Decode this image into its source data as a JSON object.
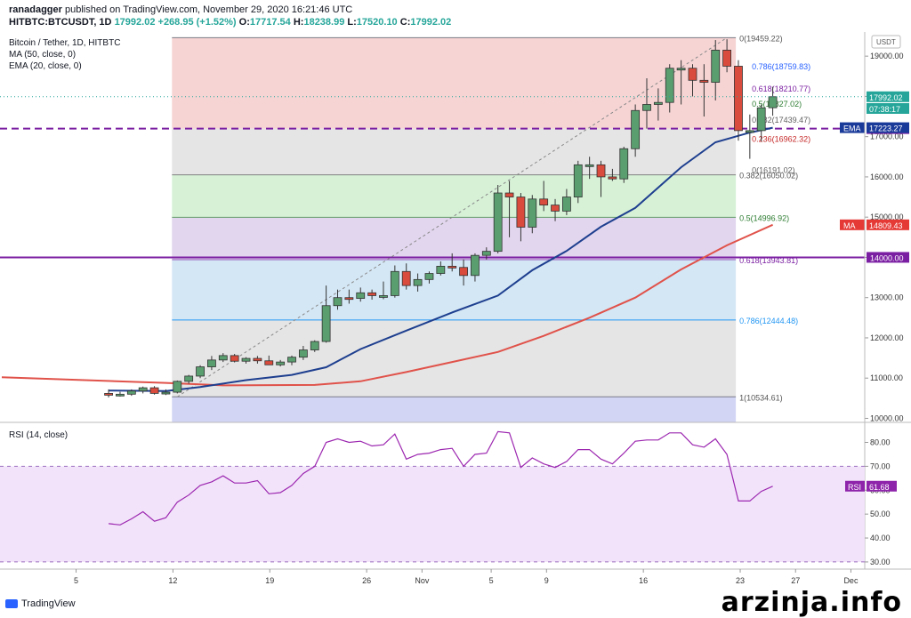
{
  "header": {
    "author": "ranadagger",
    "published_text": "published on TradingView.com, November 29, 2020 16:21:46 UTC",
    "symbol": "HITBTC:BTCUSDT, 1D",
    "close": "17992.02",
    "change": "+268.95 (+1.52%)",
    "open_label": "O:",
    "open": "17717.54",
    "high_label": "H:",
    "high": "18238.99",
    "low_label": "L:",
    "low": "17520.10",
    "close_label": "C:",
    "close_val": "17992.02"
  },
  "legend": {
    "title": "Bitcoin / Tether, 1D, HITBTC",
    "ma": "MA (50, close, 0)",
    "ema": "EMA (20, close, 0)",
    "rsi": "RSI (14, close)"
  },
  "footer": {
    "logo": "TradingView",
    "watermark": "arzinja.info"
  },
  "chart_data": [
    {
      "type": "candlestick",
      "title": "Bitcoin / Tether, 1D, HITBTC",
      "currency": "USDT",
      "ylim": [
        9900,
        19600
      ],
      "yticks": [
        10000,
        11000,
        12000,
        13000,
        14000,
        15000,
        16000,
        17000,
        18000,
        19000
      ],
      "ytick_labels": [
        "10000.00",
        "11000.00",
        "12000.00",
        "13000.00",
        "14000.00",
        "15000.00",
        "16000.00",
        "17000.00",
        "18000.00",
        "19000.00"
      ],
      "x_day_range": [
        -0.5,
        31.2
      ],
      "x_ticks": [
        {
          "label": "5",
          "day": 5
        },
        {
          "label": "12",
          "day": 12
        },
        {
          "label": "19",
          "day": 19
        },
        {
          "label": "26",
          "day": 26
        },
        {
          "label": "Nov",
          "day": 30
        },
        {
          "label": "5",
          "day": 35
        },
        {
          "label": "9",
          "day": 39
        },
        {
          "label": "16",
          "day": 46
        },
        {
          "label": "23",
          "day": 53
        },
        {
          "label": "27",
          "day": 57
        },
        {
          "label": "Dec",
          "day": 61
        }
      ],
      "candles": [
        [
          0,
          10620,
          10720,
          10520,
          10580
        ],
        [
          1,
          10580,
          10660,
          10540,
          10600
        ],
        [
          2,
          10600,
          10720,
          10560,
          10680
        ],
        [
          3,
          10680,
          10790,
          10620,
          10760
        ],
        [
          4,
          10760,
          10800,
          10590,
          10620
        ],
        [
          5,
          10620,
          10720,
          10580,
          10650
        ],
        [
          6,
          10650,
          10940,
          10620,
          10920
        ],
        [
          7,
          10920,
          11080,
          10860,
          11050
        ],
        [
          8,
          11050,
          11320,
          11000,
          11280
        ],
        [
          9,
          11280,
          11550,
          11200,
          11450
        ],
        [
          10,
          11450,
          11620,
          11400,
          11560
        ],
        [
          11,
          11560,
          11600,
          11390,
          11420
        ],
        [
          12,
          11420,
          11520,
          11360,
          11490
        ],
        [
          13,
          11490,
          11550,
          11360,
          11430
        ],
        [
          14,
          11430,
          11560,
          11340,
          11330
        ],
        [
          15,
          11330,
          11450,
          11290,
          11400
        ],
        [
          16,
          11400,
          11560,
          11320,
          11520
        ],
        [
          17,
          11520,
          11800,
          11450,
          11700
        ],
        [
          18,
          11700,
          11940,
          11650,
          11910
        ],
        [
          19,
          11910,
          13300,
          11880,
          12800
        ],
        [
          20,
          12800,
          13200,
          12700,
          13000
        ],
        [
          21,
          13000,
          13200,
          12850,
          12980
        ],
        [
          22,
          12980,
          13250,
          12900,
          13120
        ],
        [
          23,
          13120,
          13200,
          12950,
          13050
        ],
        [
          24,
          13050,
          13400,
          12960,
          13050
        ],
        [
          25,
          13050,
          13800,
          13000,
          13650
        ],
        [
          26,
          13650,
          13850,
          13200,
          13300
        ],
        [
          27,
          13300,
          13600,
          13150,
          13450
        ],
        [
          28,
          13450,
          13650,
          13350,
          13600
        ],
        [
          29,
          13600,
          13900,
          13550,
          13780
        ],
        [
          30,
          13780,
          14100,
          13650,
          13750
        ],
        [
          31,
          13750,
          13950,
          13300,
          13550
        ],
        [
          32,
          13550,
          14100,
          13400,
          14050
        ],
        [
          33,
          14050,
          14250,
          13950,
          14150
        ],
        [
          34,
          14150,
          15800,
          14100,
          15600
        ],
        [
          35,
          15600,
          15900,
          14500,
          15500
        ],
        [
          36,
          15500,
          15600,
          14400,
          14750
        ],
        [
          37,
          14750,
          15550,
          14600,
          15450
        ],
        [
          38,
          15450,
          15900,
          15150,
          15300
        ],
        [
          39,
          15300,
          15450,
          14900,
          15150
        ],
        [
          40,
          15150,
          15700,
          15050,
          15500
        ],
        [
          41,
          15500,
          16400,
          15350,
          16300
        ],
        [
          42,
          16300,
          16500,
          15950,
          16300
        ],
        [
          43,
          16300,
          16400,
          15500,
          16000
        ],
        [
          44,
          16000,
          16200,
          15900,
          15950
        ],
        [
          45,
          15950,
          16750,
          15850,
          16700
        ],
        [
          46,
          16700,
          17800,
          16500,
          17650
        ],
        [
          47,
          17650,
          18450,
          17200,
          17800
        ],
        [
          48,
          17800,
          18200,
          17400,
          17850
        ],
        [
          49,
          17850,
          18800,
          17600,
          18700
        ],
        [
          50,
          18700,
          18900,
          17800,
          18700
        ],
        [
          51,
          18700,
          18800,
          18000,
          18400
        ],
        [
          52,
          18400,
          18800,
          17500,
          18350
        ],
        [
          53,
          18350,
          19400,
          17900,
          19150
        ],
        [
          54,
          19150,
          19420,
          18600,
          18750
        ],
        [
          55,
          18750,
          18900,
          16900,
          17150
        ],
        [
          56,
          17150,
          17550,
          16450,
          17150
        ],
        [
          57,
          17150,
          17800,
          16880,
          17718
        ],
        [
          58,
          17718,
          18239,
          17520,
          17992
        ]
      ],
      "ema20": [
        [
          0,
          10690
        ],
        [
          5,
          10680
        ],
        [
          8,
          10780
        ],
        [
          12,
          10950
        ],
        [
          16,
          11080
        ],
        [
          19,
          11270
        ],
        [
          22,
          11720
        ],
        [
          26,
          12180
        ],
        [
          30,
          12630
        ],
        [
          34,
          13050
        ],
        [
          37,
          13680
        ],
        [
          40,
          14160
        ],
        [
          43,
          14760
        ],
        [
          46,
          15230
        ],
        [
          50,
          16240
        ],
        [
          53,
          16860
        ],
        [
          56,
          17100
        ],
        [
          58,
          17223
        ]
      ],
      "ma50": [
        [
          -0.4,
          11020
        ],
        [
          5,
          10880
        ],
        [
          10,
          10820
        ],
        [
          18,
          10830
        ],
        [
          22,
          10920
        ],
        [
          26,
          11150
        ],
        [
          30,
          11400
        ],
        [
          34,
          11650
        ],
        [
          38,
          12050
        ],
        [
          42,
          12500
        ],
        [
          46,
          13000
        ],
        [
          50,
          13700
        ],
        [
          54,
          14300
        ],
        [
          58,
          14809
        ]
      ],
      "fib_retracement": {
        "levels": [
          {
            "ratio": "0",
            "value": "19459.22",
            "y": 19459,
            "label": "0(19459.22)"
          },
          {
            "ratio": "0.786",
            "value": "12444.48",
            "y": 12444,
            "label": "0.786(12444.48)"
          },
          {
            "ratio": "1",
            "value": "10534.61",
            "y": 10535,
            "label": "1(10534.61)"
          }
        ],
        "zones": [
          {
            "from": 19459,
            "to": 17200,
            "color": "#f3c5c5"
          },
          {
            "from": 17200,
            "to": 16050,
            "color": "#dcdcdc"
          },
          {
            "from": 16050,
            "to": 14997,
            "color": "#c9ecc9"
          },
          {
            "from": 14997,
            "to": 13944,
            "color": "#d8c8e8"
          },
          {
            "from": 13944,
            "to": 12444,
            "color": "#c5dff2"
          },
          {
            "from": 12444,
            "to": 10535,
            "color": "#dcdcdc"
          },
          {
            "from": 10535,
            "to": 9900,
            "color": "#c3c7f0"
          }
        ]
      },
      "fib_extension": [
        {
          "label": "0.786(18759.83)",
          "y": 18760,
          "color": "#2962ff"
        },
        {
          "label": "0.618(18210.77)",
          "y": 18211,
          "color": "#7b1fa2"
        },
        {
          "label": "0.5(17827.02)",
          "y": 17827,
          "color": "#2e7d32"
        },
        {
          "label": "0.382(17439.47)",
          "y": 17439,
          "color": "#616161"
        },
        {
          "label": "0.236(16962.32)",
          "y": 16962,
          "color": "#c62828"
        },
        {
          "label": "0(16191.02)",
          "y": 16191,
          "color": "#616161"
        }
      ],
      "main_fib_labels": [
        {
          "label": "0.382(16050.02)",
          "y": 16050
        },
        {
          "label": "0.5(14996.92)",
          "y": 14997
        },
        {
          "label": "0.618(13943.81)",
          "y": 13944
        }
      ],
      "horizontal_lines": [
        {
          "y": 17200,
          "label": "17200.00",
          "color": "#7b1fa2",
          "style": "dashed"
        },
        {
          "y": 14000,
          "label": "14000.00",
          "color": "#7b1fa2",
          "style": "solid"
        }
      ],
      "price_tags": [
        {
          "label": "17992.02",
          "y": 17992,
          "color": "#26a69a"
        },
        {
          "label": "07:38:17",
          "y": 17700,
          "color": "#26a69a"
        },
        {
          "name": "EMA",
          "label": "17223.27",
          "y": 17223,
          "color": "#1a3a9a"
        },
        {
          "name": "MA",
          "label": "14809.43",
          "y": 14809,
          "color": "#e53935"
        }
      ],
      "current_price": 17992.02
    },
    {
      "type": "line",
      "title": "RSI (14, close)",
      "ylim": [
        27,
        88
      ],
      "yticks": [
        30,
        40,
        50,
        60,
        70,
        80
      ],
      "ytick_labels": [
        "30.00",
        "40.00",
        "50.00",
        "60.00",
        "70.00",
        "80.00"
      ],
      "band": [
        30,
        70
      ],
      "rsi": [
        [
          0,
          46
        ],
        [
          1,
          45.5
        ],
        [
          2,
          48
        ],
        [
          3,
          51
        ],
        [
          4,
          47
        ],
        [
          5,
          48.5
        ],
        [
          6,
          55
        ],
        [
          7,
          58
        ],
        [
          8,
          62
        ],
        [
          9,
          63.5
        ],
        [
          10,
          66
        ],
        [
          11,
          63
        ],
        [
          12,
          63
        ],
        [
          13,
          64
        ],
        [
          14,
          58.5
        ],
        [
          15,
          59
        ],
        [
          16,
          62
        ],
        [
          17,
          67
        ],
        [
          18,
          70
        ],
        [
          19,
          80
        ],
        [
          20,
          81.5
        ],
        [
          21,
          80
        ],
        [
          22,
          80.5
        ],
        [
          23,
          78.5
        ],
        [
          24,
          79
        ],
        [
          25,
          83.5
        ],
        [
          26,
          73
        ],
        [
          27,
          75
        ],
        [
          28,
          75.5
        ],
        [
          29,
          77
        ],
        [
          30,
          77.5
        ],
        [
          31,
          70
        ],
        [
          32,
          75
        ],
        [
          33,
          75.5
        ],
        [
          34,
          84.5
        ],
        [
          35,
          84
        ],
        [
          36,
          69.5
        ],
        [
          37,
          73.5
        ],
        [
          38,
          71
        ],
        [
          39,
          69.5
        ],
        [
          40,
          72
        ],
        [
          41,
          77
        ],
        [
          42,
          77
        ],
        [
          43,
          73
        ],
        [
          44,
          71
        ],
        [
          45,
          75.5
        ],
        [
          46,
          80.5
        ],
        [
          47,
          81
        ],
        [
          48,
          81
        ],
        [
          49,
          84
        ],
        [
          50,
          84
        ],
        [
          51,
          79
        ],
        [
          52,
          78
        ],
        [
          53,
          81.5
        ],
        [
          54,
          75
        ],
        [
          55,
          55.5
        ],
        [
          56,
          55.5
        ],
        [
          57,
          59.5
        ],
        [
          58,
          61.68
        ]
      ],
      "current": {
        "label": "61.68",
        "y": 61.68
      }
    }
  ]
}
